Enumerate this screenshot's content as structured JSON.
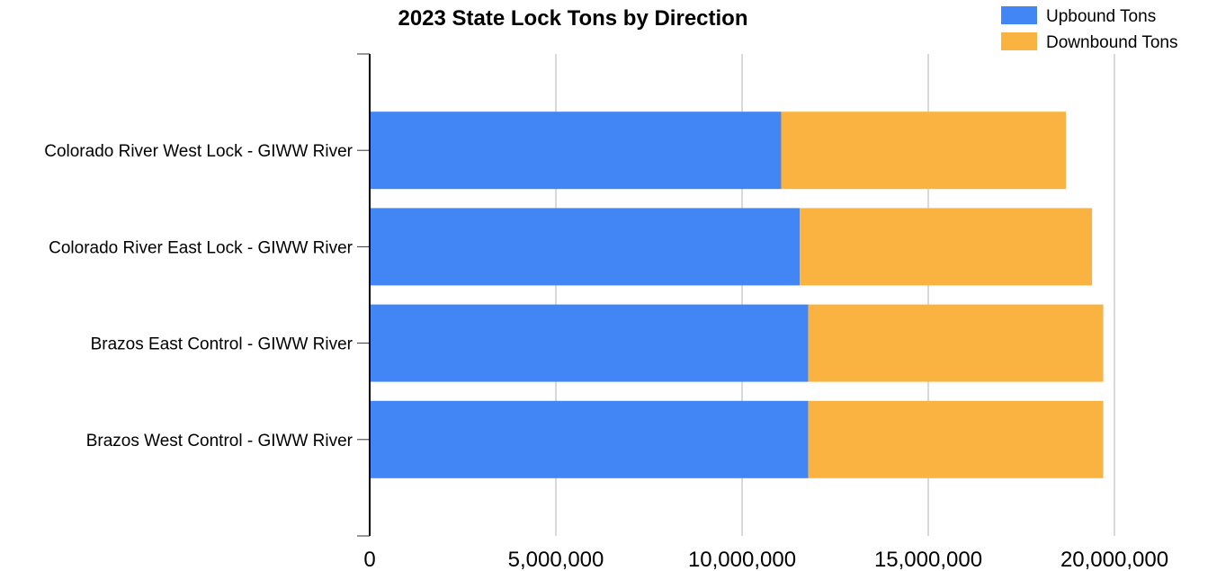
{
  "chart_data": {
    "type": "bar",
    "orientation": "horizontal",
    "stacked": true,
    "title": "2023 State Lock Tons by Direction",
    "xlabel": "",
    "ylabel": "",
    "categories": [
      "Colorado River West Lock - GIWW River",
      "Colorado River East Lock - GIWW River",
      "Brazos East Control - GIWW River",
      "Brazos West Control - GIWW River"
    ],
    "series": [
      {
        "name": "Upbound Tons",
        "color": "#4285F4",
        "values": [
          11050000,
          11550000,
          11780000,
          11780000
        ]
      },
      {
        "name": "Downbound Tons",
        "color": "#FAB340",
        "values": [
          7650000,
          7850000,
          7920000,
          7920000
        ]
      }
    ],
    "xlim": [
      0,
      20000000
    ],
    "xticks": [
      0,
      5000000,
      10000000,
      15000000,
      20000000
    ],
    "xtick_labels": [
      "0",
      "5,000,000",
      "10,000,000",
      "15,000,000",
      "20,000,000"
    ],
    "grid": true,
    "legend_position": "top-right"
  }
}
